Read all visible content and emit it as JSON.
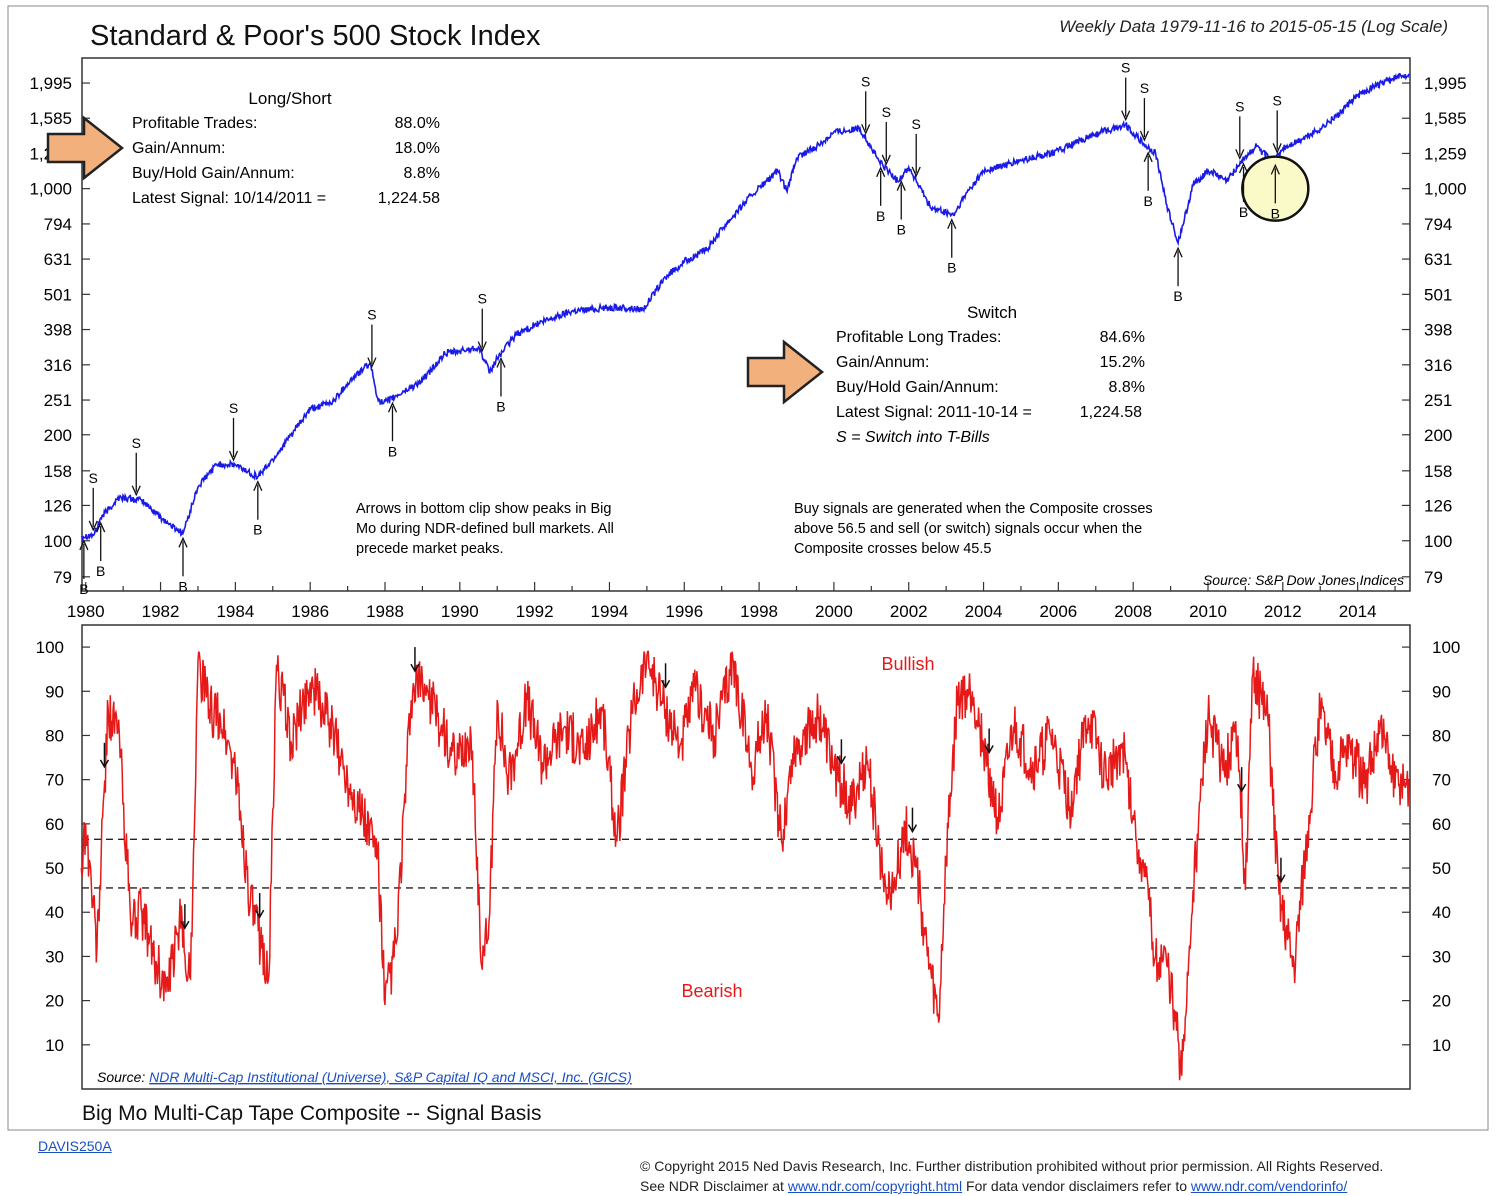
{
  "header": {
    "title": "Standard & Poor's 500 Stock Index",
    "subtitle": "Weekly Data 1979-11-16 to 2015-05-15 (Log Scale)"
  },
  "colors": {
    "price_line": "#1a1ae6",
    "composite_line": "#e61919",
    "arrow_fill": "#f2b07c",
    "highlight_fill": "#fafac8"
  },
  "long_short": {
    "heading": "Long/Short",
    "rows": [
      {
        "label": "Profitable Trades:",
        "value": "88.0%"
      },
      {
        "label": "Gain/Annum:",
        "value": "18.0%"
      },
      {
        "label": "Buy/Hold Gain/Annum:",
        "value": "8.8%"
      },
      {
        "label": "Latest Signal:   10/14/2011   =",
        "value": "1,224.58"
      }
    ]
  },
  "switch_box": {
    "heading": "Switch",
    "rows": [
      {
        "label": "Profitable Long Trades:",
        "value": "84.6%"
      },
      {
        "label": "Gain/Annum:",
        "value": "15.2%"
      },
      {
        "label": "Buy/Hold Gain/Annum:",
        "value": "8.8%"
      },
      {
        "label": "Latest Signal:   2011-10-14   =",
        "value": "1,224.58"
      }
    ],
    "note": "S = Switch into T-Bills"
  },
  "notes": {
    "arrows": [
      "Arrows in bottom clip show peaks in Big",
      "Mo during NDR-defined bull markets.  All",
      "precede market peaks."
    ],
    "signals": [
      "Buy signals are generated when the Composite crosses",
      "above 56.5 and sell (or switch) signals occur when the",
      "Composite crosses below 45.5"
    ],
    "source_top": "Source:  S&P Dow Jones Indices",
    "source_bottom_prefix": "Source: ",
    "source_bottom_link": "NDR Multi-Cap Institutional (Universe), S&P Capital IQ and MSCI, Inc. (GICS)"
  },
  "zone_labels": {
    "bullish": "Bullish",
    "bearish": "Bearish"
  },
  "bottom_title": "Big Mo Multi-Cap Tape Composite -- Signal Basis",
  "footer": {
    "code": "DAVIS250A",
    "copyright_line1": "© Copyright 2015 Ned Davis Research, Inc. Further distribution prohibited without prior permission. All Rights Reserved.",
    "copyright_line2_a": "See NDR Disclaimer at ",
    "copyright_link1": "www.ndr.com/copyright.html",
    "copyright_line2_b": "  For data vendor disclaimers refer to ",
    "copyright_link2": "www.ndr.com/vendorinfo/"
  },
  "chart_data": [
    {
      "type": "line",
      "title": "Standard & Poor's 500 Stock Index",
      "scale": "log",
      "ylim": [
        72,
        2350
      ],
      "y_ticks": [
        79,
        100,
        126,
        158,
        200,
        251,
        316,
        398,
        501,
        631,
        794,
        1000,
        1259,
        1585,
        1995
      ],
      "y_tick_labels": [
        "79",
        "100",
        "126",
        "158",
        "200",
        "251",
        "316",
        "398",
        "501",
        "631",
        "794",
        "1,000",
        "1,259",
        "1,585",
        "1,995"
      ],
      "xlim": [
        1979.9,
        2015.4
      ],
      "x_ticks": [
        1980,
        1982,
        1984,
        1986,
        1988,
        1990,
        1992,
        1994,
        1996,
        1998,
        2000,
        2002,
        2004,
        2006,
        2008,
        2010,
        2012,
        2014
      ],
      "grid": false,
      "series": [
        {
          "x": [
            1979.88,
            1980.22,
            1980.4,
            1980.9,
            1981.5,
            1982.2,
            1982.6,
            1983.0,
            1983.5,
            1984.0,
            1984.6,
            1985.0,
            1986.0,
            1986.6,
            1987.0,
            1987.6,
            1987.8,
            1987.95,
            1988.5,
            1989.0,
            1989.6,
            1990.0,
            1990.5,
            1990.8,
            1991.0,
            1991.5,
            1992.0,
            1993.0,
            1994.0,
            1994.9,
            1995.5,
            1996.0,
            1996.6,
            1997.0,
            1997.8,
            1998.5,
            1998.75,
            1999.0,
            1999.6,
            2000.0,
            2000.7,
            2001.2,
            2001.7,
            2002.0,
            2002.6,
            2003.2,
            2003.6,
            2004.0,
            2005.0,
            2006.0,
            2007.0,
            2007.8,
            2008.3,
            2008.6,
            2008.9,
            2009.2,
            2009.6,
            2010.0,
            2010.5,
            2010.9,
            2011.3,
            2011.75,
            2012.0,
            2012.5,
            2013.0,
            2013.5,
            2014.0,
            2014.5,
            2015.0,
            2015.37
          ],
          "values": [
            103,
            104,
            116,
            133,
            130,
            112,
            105,
            142,
            165,
            164,
            152,
            170,
            236,
            248,
            280,
            320,
            255,
            245,
            265,
            285,
            340,
            345,
            355,
            300,
            330,
            385,
            410,
            450,
            460,
            455,
            560,
            620,
            670,
            770,
            960,
            1120,
            980,
            1220,
            1330,
            1450,
            1480,
            1200,
            1050,
            1150,
            880,
            840,
            990,
            1120,
            1200,
            1280,
            1430,
            1520,
            1330,
            1260,
            900,
            700,
            1020,
            1130,
            1050,
            1200,
            1320,
            1180,
            1300,
            1380,
            1480,
            1630,
            1840,
            1960,
            2060,
            2120
          ]
        }
      ],
      "signals": [
        {
          "type": "S",
          "x": 1980.2
        },
        {
          "type": "S",
          "x": 1981.35
        },
        {
          "type": "S",
          "x": 1983.95
        },
        {
          "type": "S",
          "x": 1987.65
        },
        {
          "type": "S",
          "x": 1990.6
        },
        {
          "type": "S",
          "x": 2000.85
        },
        {
          "type": "S",
          "x": 2001.4
        },
        {
          "type": "S",
          "x": 2002.2
        },
        {
          "type": "S",
          "x": 2007.8
        },
        {
          "type": "S",
          "x": 2008.3
        },
        {
          "type": "S",
          "x": 2010.85
        },
        {
          "type": "S",
          "x": 2011.85
        },
        {
          "type": "B",
          "x": 1979.95
        },
        {
          "type": "B",
          "x": 1980.4
        },
        {
          "type": "B",
          "x": 1982.6
        },
        {
          "type": "B",
          "x": 1984.6
        },
        {
          "type": "B",
          "x": 1988.2
        },
        {
          "type": "B",
          "x": 1991.1
        },
        {
          "type": "B",
          "x": 2001.25
        },
        {
          "type": "B",
          "x": 2001.8
        },
        {
          "type": "B",
          "x": 2003.15
        },
        {
          "type": "B",
          "x": 2008.4
        },
        {
          "type": "B",
          "x": 2009.2
        },
        {
          "type": "B",
          "x": 2010.95
        },
        {
          "type": "B",
          "x": 2011.8
        }
      ],
      "highlight": {
        "x": 2011.8,
        "value": 1000
      }
    },
    {
      "type": "line",
      "title": "Big Mo Multi-Cap Tape Composite -- Signal Basis",
      "ylim": [
        0,
        105
      ],
      "y_ticks": [
        10,
        20,
        30,
        40,
        50,
        60,
        70,
        80,
        90,
        100
      ],
      "reference_lines": [
        56.5,
        45.5
      ],
      "series": [
        {
          "x": [
            1979.88,
            1980.0,
            1980.3,
            1980.6,
            1980.9,
            1981.2,
            1981.5,
            1981.8,
            1982.2,
            1982.5,
            1982.8,
            1983.0,
            1983.3,
            1983.6,
            1984.0,
            1984.4,
            1984.9,
            1985.1,
            1985.5,
            1986.0,
            1986.5,
            1987.0,
            1987.5,
            1987.8,
            1988.0,
            1988.3,
            1988.7,
            1989.0,
            1989.5,
            1989.9,
            1990.3,
            1990.6,
            1990.8,
            1991.0,
            1991.3,
            1991.8,
            1992.2,
            1992.8,
            1993.3,
            1993.8,
            1994.2,
            1994.6,
            1995.0,
            1995.5,
            1995.9,
            1996.3,
            1996.8,
            1997.3,
            1997.8,
            1998.2,
            1998.6,
            1998.9,
            1999.2,
            1999.6,
            2000.0,
            2000.5,
            2000.9,
            2001.3,
            2001.6,
            2001.9,
            2002.2,
            2002.5,
            2002.8,
            2003.0,
            2003.3,
            2003.7,
            2004.0,
            2004.4,
            2004.8,
            2005.3,
            2005.8,
            2006.3,
            2006.8,
            2007.3,
            2007.7,
            2008.0,
            2008.3,
            2008.6,
            2008.9,
            2009.1,
            2009.3,
            2009.6,
            2010.0,
            2010.4,
            2010.8,
            2011.0,
            2011.2,
            2011.6,
            2011.9,
            2012.3,
            2012.7,
            2013.0,
            2013.4,
            2013.8,
            2014.2,
            2014.6,
            2015.0,
            2015.37
          ],
          "values": [
            50,
            60,
            32,
            86,
            80,
            38,
            40,
            30,
            22,
            38,
            25,
            97,
            86,
            84,
            72,
            42,
            26,
            96,
            78,
            92,
            83,
            70,
            60,
            54,
            19,
            33,
            88,
            93,
            82,
            73,
            80,
            27,
            40,
            88,
            70,
            88,
            74,
            82,
            76,
            86,
            56,
            85,
            98,
            86,
            78,
            90,
            80,
            97,
            72,
            85,
            56,
            76,
            80,
            84,
            72,
            64,
            74,
            48,
            45,
            60,
            50,
            30,
            15,
            52,
            88,
            90,
            78,
            60,
            82,
            72,
            80,
            64,
            84,
            70,
            78,
            62,
            48,
            30,
            28,
            18,
            3,
            45,
            84,
            72,
            80,
            45,
            94,
            84,
            44,
            28,
            62,
            86,
            72,
            78,
            68,
            82,
            68,
            70
          ]
        }
      ],
      "peak_arrows_x": [
        1980.5,
        1982.65,
        1984.65,
        1988.8,
        1995.5,
        2000.2,
        2002.1,
        2004.15,
        2010.9,
        2011.95
      ]
    }
  ]
}
